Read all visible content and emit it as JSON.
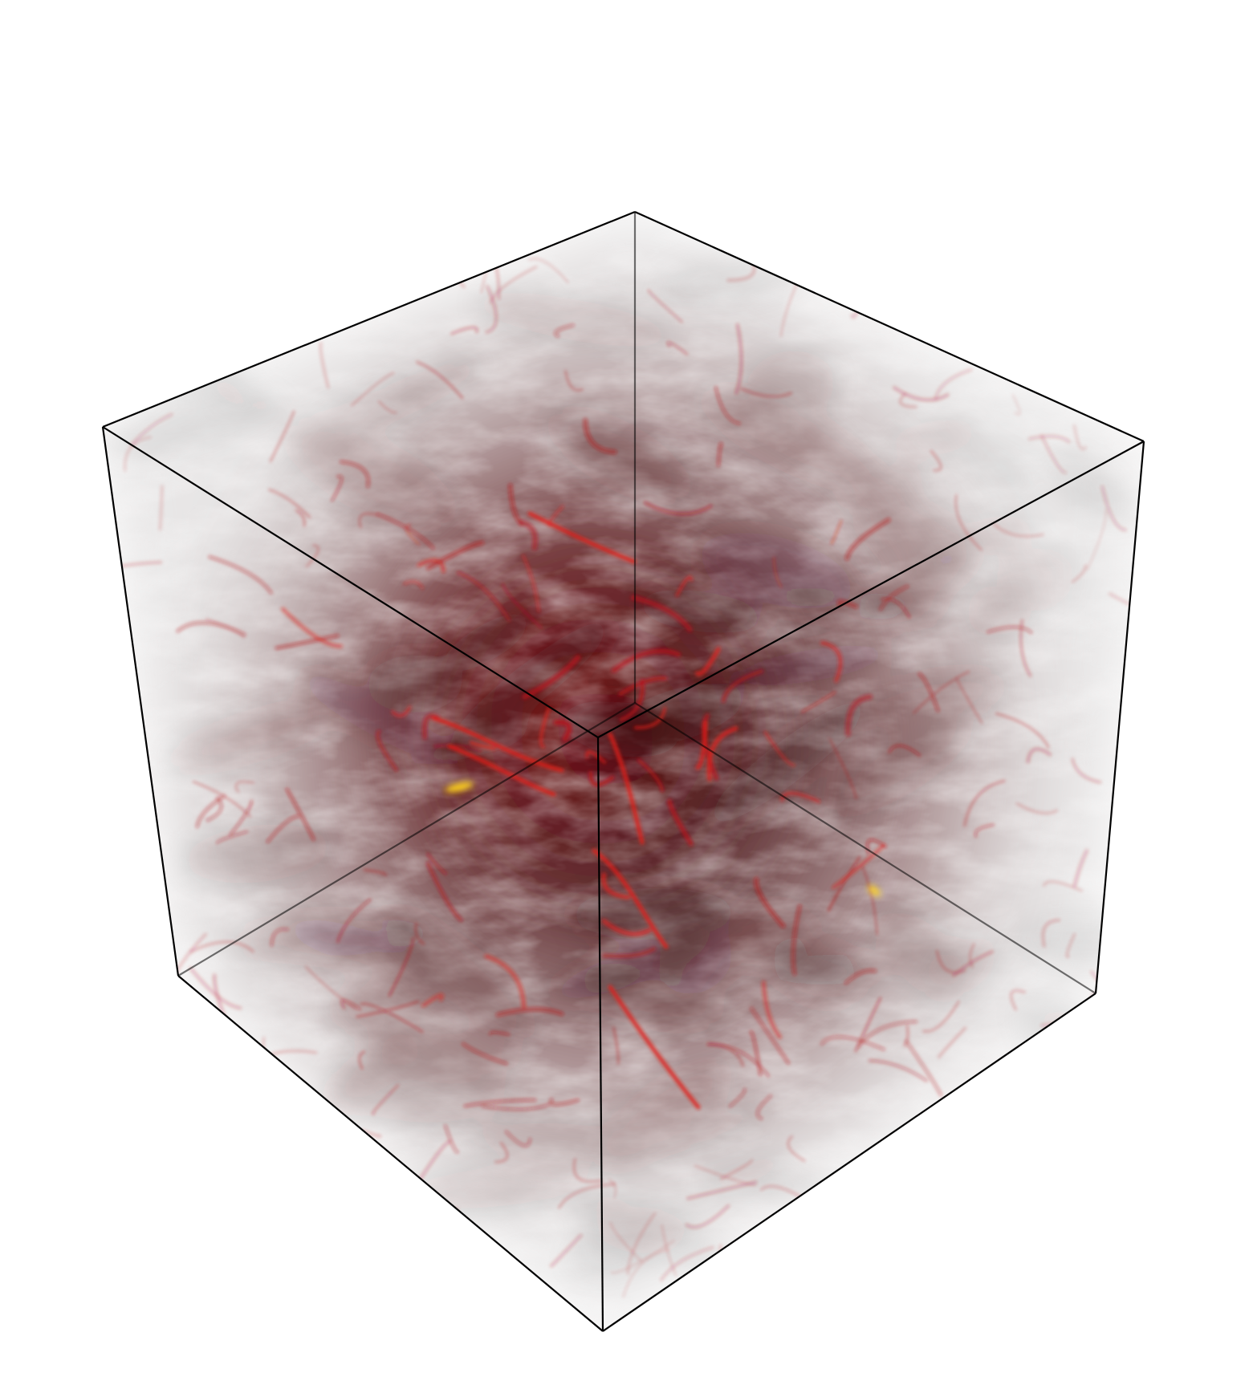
{
  "scene": {
    "background_color": "#ffffff",
    "box_edge_color": "#000000",
    "volume_colors": {
      "haze": "#d6d1d1",
      "shadow": "#3a1416",
      "filament": "#b3121a",
      "bright_filament": "#e0201a",
      "hotspot": "#ffd21a"
    },
    "object": "volume-rendered-cube"
  }
}
